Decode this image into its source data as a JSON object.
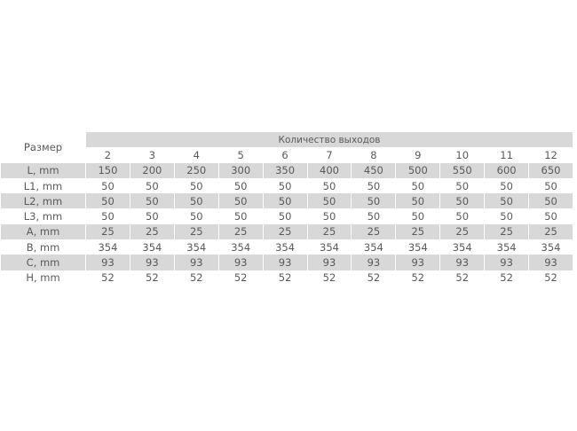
{
  "table": {
    "row_header": "Размер",
    "group_header": "Количество выходов",
    "columns": [
      "2",
      "3",
      "4",
      "5",
      "6",
      "7",
      "8",
      "9",
      "10",
      "11",
      "12"
    ],
    "rows": [
      {
        "label": "L, mm",
        "values": [
          "150",
          "200",
          "250",
          "300",
          "350",
          "400",
          "450",
          "500",
          "550",
          "600",
          "650"
        ]
      },
      {
        "label": "L1, mm",
        "values": [
          "50",
          "50",
          "50",
          "50",
          "50",
          "50",
          "50",
          "50",
          "50",
          "50",
          "50"
        ]
      },
      {
        "label": "L2, mm",
        "values": [
          "50",
          "50",
          "50",
          "50",
          "50",
          "50",
          "50",
          "50",
          "50",
          "50",
          "50"
        ]
      },
      {
        "label": "L3, mm",
        "values": [
          "50",
          "50",
          "50",
          "50",
          "50",
          "50",
          "50",
          "50",
          "50",
          "50",
          "50"
        ]
      },
      {
        "label": "A, mm",
        "values": [
          "25",
          "25",
          "25",
          "25",
          "25",
          "25",
          "25",
          "25",
          "25",
          "25",
          "25"
        ]
      },
      {
        "label": "B, mm",
        "values": [
          "354",
          "354",
          "354",
          "354",
          "354",
          "354",
          "354",
          "354",
          "354",
          "354",
          "354"
        ]
      },
      {
        "label": "C, mm",
        "values": [
          "93",
          "93",
          "93",
          "93",
          "93",
          "93",
          "93",
          "93",
          "93",
          "93",
          "93"
        ]
      },
      {
        "label": "H, mm",
        "values": [
          "52",
          "52",
          "52",
          "52",
          "52",
          "52",
          "52",
          "52",
          "52",
          "52",
          "52"
        ]
      }
    ],
    "colors": {
      "stripe": "#d8d8d8",
      "text": "#5a5a5a"
    }
  }
}
